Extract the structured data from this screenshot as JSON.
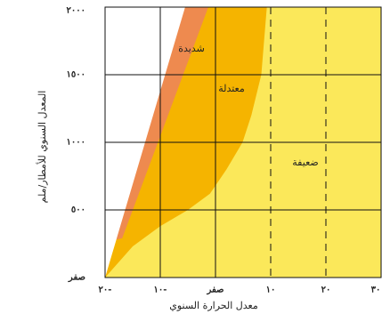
{
  "chart_data": {
    "type": "area",
    "xlabel": "معدل الحرارة السنوي",
    "ylabel": "المعدل السنوي للأمطار/ملم",
    "xlim": [
      -20,
      30
    ],
    "ylim": [
      0,
      2000
    ],
    "xticks": [
      {
        "value": -20,
        "label": "٢٠-"
      },
      {
        "value": -10,
        "label": "١٠-"
      },
      {
        "value": 0,
        "label": "صفر"
      },
      {
        "value": 10,
        "label": "١٠"
      },
      {
        "value": 20,
        "label": "٢٠"
      },
      {
        "value": 30,
        "label": "٣٠"
      }
    ],
    "yticks": [
      {
        "value": 0,
        "label": "صفر"
      },
      {
        "value": 500,
        "label": "٥٠٠"
      },
      {
        "value": 1000,
        "label": "١٠٠٠"
      },
      {
        "value": 1500,
        "label": "١٥٠٠"
      },
      {
        "value": 2000,
        "label": "٢٠٠٠"
      }
    ],
    "grid": true,
    "regions": [
      {
        "name": "ضعيفة",
        "color": "#fbe85a",
        "x": [
          -20,
          30,
          30,
          -20
        ],
        "y": [
          0,
          0,
          2000,
          2000
        ]
      },
      {
        "name": "معتدلة",
        "color": "#f5b400",
        "x": [
          -20,
          -5.5,
          9.3,
          8.3,
          6.5,
          4.9,
          2,
          -1,
          -5,
          -10,
          -15
        ],
        "y": [
          0,
          2000,
          2000,
          1500,
          1200,
          1000,
          800,
          620,
          500,
          380,
          230
        ]
      },
      {
        "name": "شديدة",
        "color": "#ee8a4f",
        "x": [
          -19.2,
          -5.5,
          -1.3,
          -16.9
        ],
        "y": [
          270,
          2000,
          2000,
          290
        ]
      },
      {
        "color": "#ffffff",
        "x": [
          -20,
          -5.5,
          -20
        ],
        "y": [
          0,
          2000,
          2000
        ]
      }
    ]
  }
}
